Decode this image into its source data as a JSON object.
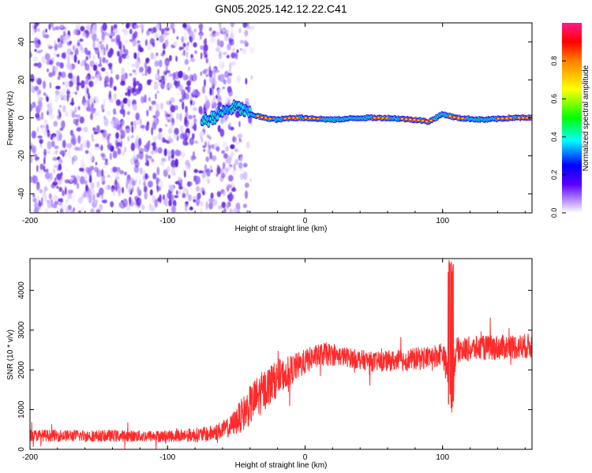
{
  "title": "GN05.2025.142.12.22.C41",
  "colors": {
    "snr_line": "#ff2a2a",
    "waterfall_noise": "#6a2be0",
    "colorbar_stops": [
      "#ffffff",
      "#c8a8ff",
      "#5a00ff",
      "#0000ff",
      "#00ffff",
      "#00ff00",
      "#ffff00",
      "#ff8000",
      "#ff0000",
      "#ff1a8c"
    ]
  },
  "chart_data": [
    {
      "type": "heatmap",
      "name": "spectral-waterfall",
      "xlabel": "Height of straight line (km)",
      "ylabel": "Frequency (Hz)",
      "xlim": [
        -200,
        165
      ],
      "ylim": [
        -50,
        50
      ],
      "xticks": [
        -200,
        -100,
        0,
        100
      ],
      "xtick_labels": [
        "-200",
        "-100",
        "0",
        "100"
      ],
      "yticks": [
        -40,
        -20,
        0,
        20,
        40
      ],
      "ytick_labels": [
        "-40",
        "-20",
        "0",
        "20",
        "40"
      ],
      "noise_region_x": [
        -200,
        -40
      ],
      "signal_track": {
        "x": [
          -70,
          -60,
          -50,
          -40,
          -30,
          -20,
          -10,
          0,
          20,
          40,
          60,
          80,
          90,
          100,
          110,
          130,
          150,
          165
        ],
        "freq": [
          -1,
          3,
          6,
          2,
          0,
          -1,
          0,
          0,
          -1,
          0,
          0,
          -1,
          -2,
          2,
          0,
          -1,
          0,
          0
        ],
        "peak_x": [
          -30,
          -10,
          5,
          55,
          75,
          87,
          110,
          145,
          160
        ]
      },
      "colorbar": {
        "label": "Normalized spectral amplitude",
        "range": [
          0,
          1
        ],
        "ticks": [
          0,
          0.2,
          0.4,
          0.6,
          0.8
        ],
        "tick_labels": [
          "0.0",
          "0.2",
          "0.4",
          "0.6",
          "0.8"
        ]
      }
    },
    {
      "type": "line",
      "name": "snr-profile",
      "xlabel": "Height of straight line (km)",
      "ylabel": "SNR (10 * v/v)",
      "xlim": [
        -200,
        165
      ],
      "ylim": [
        0,
        4800
      ],
      "xticks": [
        -200,
        -100,
        0,
        100
      ],
      "xtick_labels": [
        "-200",
        "-100",
        "0",
        "100"
      ],
      "yticks": [
        0,
        1000,
        2000,
        3000,
        4000
      ],
      "ytick_labels": [
        "0",
        "1000",
        "2000",
        "3000",
        "4000"
      ],
      "envelope": {
        "x": [
          -200,
          -150,
          -100,
          -70,
          -55,
          -45,
          -35,
          -25,
          -15,
          -5,
          5,
          15,
          25,
          50,
          75,
          95,
          100,
          103,
          106,
          110,
          130,
          165
        ],
        "mean": [
          350,
          340,
          330,
          380,
          550,
          900,
          1300,
          1650,
          1900,
          2100,
          2300,
          2400,
          2350,
          2200,
          2250,
          2350,
          2450,
          2000,
          1600,
          2500,
          2550,
          2600
        ],
        "spread": [
          150,
          150,
          150,
          200,
          250,
          450,
          550,
          500,
          400,
          350,
          300,
          300,
          250,
          250,
          280,
          300,
          300,
          400,
          500,
          320,
          320,
          320
        ]
      },
      "spike": {
        "x": [
          104,
          108
        ],
        "max": 4800,
        "min": 850
      }
    }
  ]
}
